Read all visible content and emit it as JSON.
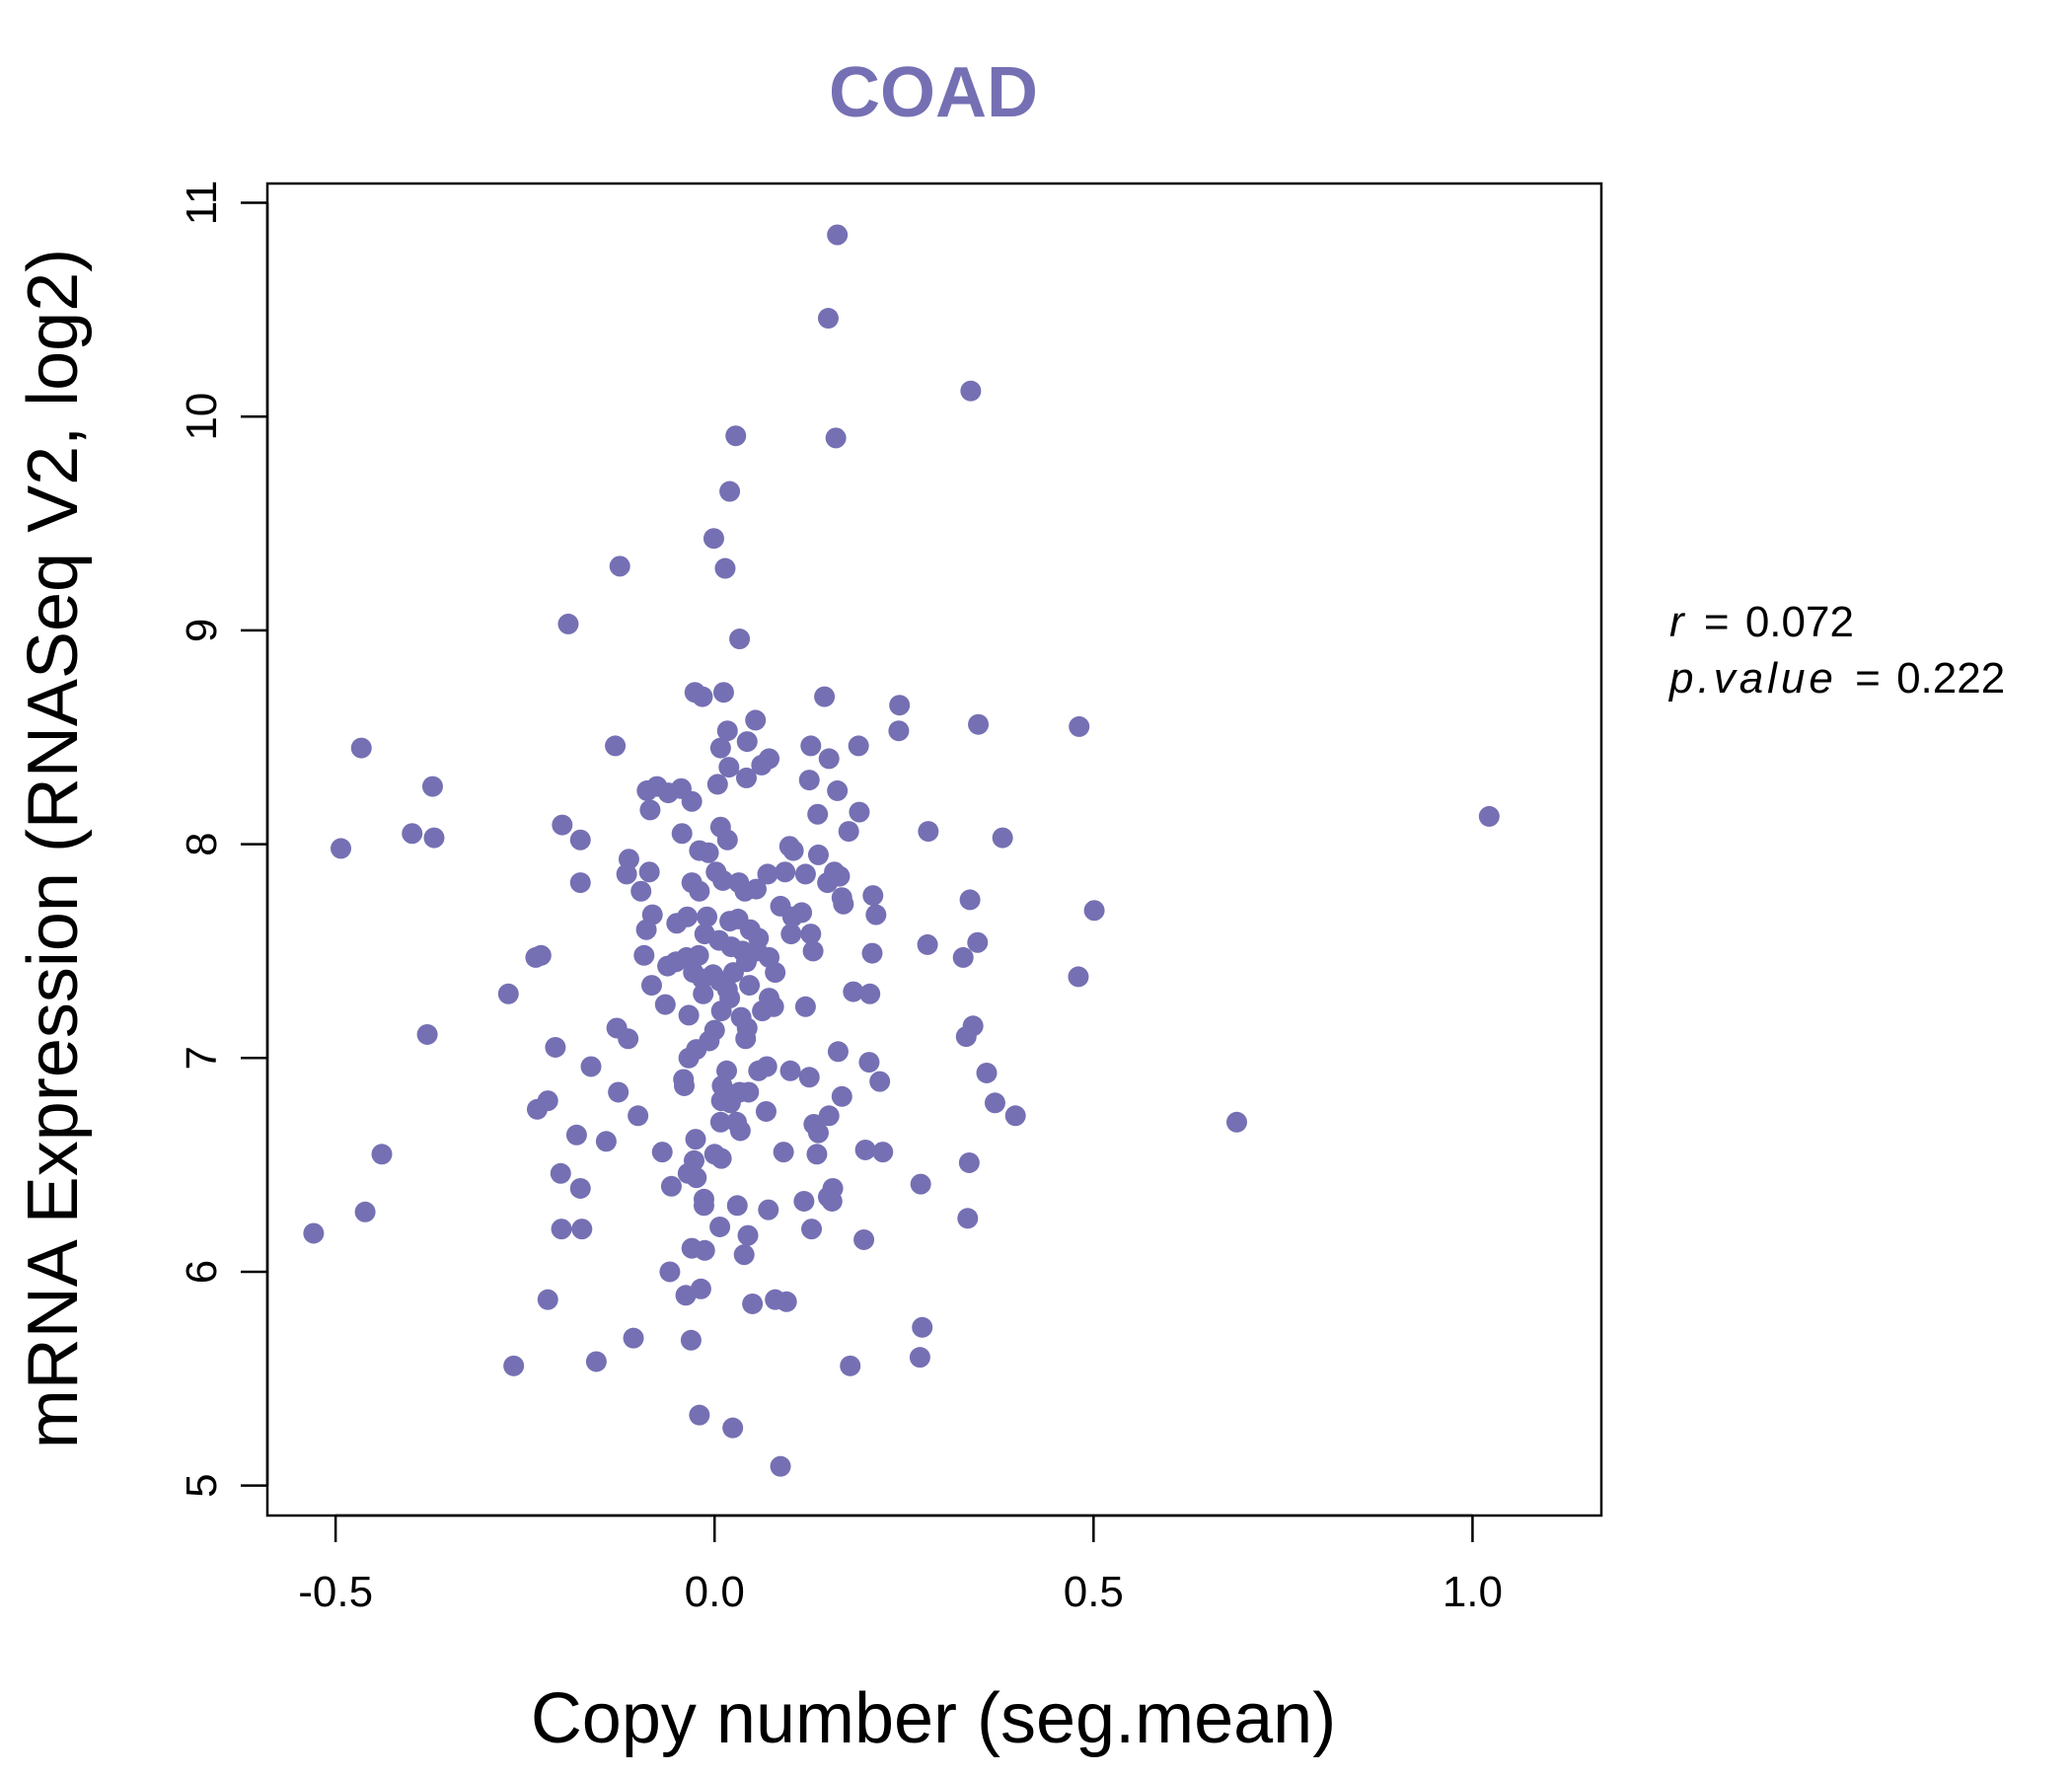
{
  "chart_data": {
    "type": "scatter",
    "title": "COAD",
    "xlabel": "Copy number (seg.mean)",
    "ylabel": "mRNA Expression (RNASeq V2, log2)",
    "xlim": [
      -0.59,
      1.17
    ],
    "ylim": [
      4.86,
      11.09
    ],
    "x_ticks": [
      "-0.5",
      "0.0",
      "0.5",
      "1.0"
    ],
    "x_tick_values": [
      -0.5,
      0.0,
      0.5,
      1.0
    ],
    "y_ticks": [
      "5",
      "6",
      "7",
      "8",
      "9",
      "10",
      "11"
    ],
    "y_tick_values": [
      5,
      6,
      7,
      8,
      9,
      10,
      11
    ],
    "grid": false,
    "point_color": "#7570B3",
    "stats": {
      "r_label": "r",
      "r_value": "0.072",
      "p_label": "p.value",
      "p_value": "0.222"
    },
    "series": [
      {
        "points": [
          [
            0.162,
            10.85
          ],
          [
            0.15,
            10.46
          ],
          [
            0.338,
            10.12
          ],
          [
            0.16,
            9.9
          ],
          [
            0.028,
            9.91
          ],
          [
            0.02,
            9.65
          ],
          [
            -0.001,
            9.43
          ],
          [
            0.014,
            9.29
          ],
          [
            -0.125,
            9.3
          ],
          [
            0.033,
            8.96
          ],
          [
            -0.193,
            9.03
          ],
          [
            -0.026,
            8.71
          ],
          [
            -0.016,
            8.69
          ],
          [
            0.012,
            8.71
          ],
          [
            0.145,
            8.69
          ],
          [
            0.244,
            8.65
          ],
          [
            0.348,
            8.56
          ],
          [
            0.481,
            8.55
          ],
          [
            0.243,
            8.53
          ],
          [
            0.054,
            8.58
          ],
          [
            0.017,
            8.53
          ],
          [
            0.008,
            8.45
          ],
          [
            0.043,
            8.48
          ],
          [
            -0.131,
            8.46
          ],
          [
            0.127,
            8.46
          ],
          [
            0.19,
            8.46
          ],
          [
            0.072,
            8.4
          ],
          [
            0.062,
            8.37
          ],
          [
            0.151,
            8.4
          ],
          [
            0.019,
            8.36
          ],
          [
            0.042,
            8.31
          ],
          [
            -0.466,
            8.45
          ],
          [
            -0.372,
            8.27
          ],
          [
            -0.076,
            8.27
          ],
          [
            -0.089,
            8.25
          ],
          [
            -0.061,
            8.24
          ],
          [
            -0.044,
            8.26
          ],
          [
            -0.03,
            8.2
          ],
          [
            0.125,
            8.3
          ],
          [
            0.162,
            8.25
          ],
          [
            0.004,
            8.28
          ],
          [
            -0.085,
            8.16
          ],
          [
            0.136,
            8.14
          ],
          [
            0.191,
            8.15
          ],
          [
            -0.201,
            8.09
          ],
          [
            0.008,
            8.08
          ],
          [
            0.177,
            8.06
          ],
          [
            0.282,
            8.06
          ],
          [
            -0.399,
            8.05
          ],
          [
            -0.37,
            8.03
          ],
          [
            -0.177,
            8.02
          ],
          [
            -0.043,
            8.05
          ],
          [
            0.017,
            8.02
          ],
          [
            0.38,
            8.03
          ],
          [
            -0.493,
            7.98
          ],
          [
            0.099,
            7.99
          ],
          [
            0.104,
            7.97
          ],
          [
            -0.02,
            7.97
          ],
          [
            -0.008,
            7.96
          ],
          [
            0.137,
            7.95
          ],
          [
            -0.113,
            7.93
          ],
          [
            -0.086,
            7.87
          ],
          [
            -0.116,
            7.86
          ],
          [
            0.002,
            7.87
          ],
          [
            0.07,
            7.86
          ],
          [
            0.093,
            7.87
          ],
          [
            0.12,
            7.86
          ],
          [
            0.158,
            7.87
          ],
          [
            0.165,
            7.85
          ],
          [
            -0.177,
            7.82
          ],
          [
            -0.03,
            7.82
          ],
          [
            0.011,
            7.83
          ],
          [
            0.032,
            7.82
          ],
          [
            0.149,
            7.82
          ],
          [
            -0.097,
            7.78
          ],
          [
            -0.02,
            7.78
          ],
          [
            0.04,
            7.78
          ],
          [
            0.055,
            7.79
          ],
          [
            0.168,
            7.75
          ],
          [
            0.209,
            7.76
          ],
          [
            0.337,
            7.74
          ],
          [
            0.17,
            7.72
          ],
          [
            0.501,
            7.69
          ],
          [
            -0.082,
            7.67
          ],
          [
            0.087,
            7.71
          ],
          [
            0.115,
            7.68
          ],
          [
            0.213,
            7.67
          ],
          [
            0.02,
            7.64
          ],
          [
            -0.05,
            7.63
          ],
          [
            -0.036,
            7.66
          ],
          [
            -0.01,
            7.66
          ],
          [
            0.031,
            7.65
          ],
          [
            0.047,
            7.6
          ],
          [
            0.058,
            7.56
          ],
          [
            0.103,
            7.66
          ],
          [
            0.101,
            7.58
          ],
          [
            -0.09,
            7.6
          ],
          [
            0.127,
            7.58
          ],
          [
            0.347,
            7.54
          ],
          [
            0.281,
            7.53
          ],
          [
            -0.013,
            7.58
          ],
          [
            0.006,
            7.55
          ],
          [
            0.022,
            7.52
          ],
          [
            0.037,
            7.5
          ],
          [
            -0.021,
            7.48
          ],
          [
            -0.093,
            7.48
          ],
          [
            0.13,
            7.5
          ],
          [
            0.056,
            7.5
          ],
          [
            0.208,
            7.49
          ],
          [
            -0.236,
            7.47
          ],
          [
            -0.229,
            7.48
          ],
          [
            0.328,
            7.47
          ],
          [
            -0.051,
            7.45
          ],
          [
            -0.037,
            7.47
          ],
          [
            0.072,
            7.47
          ],
          [
            0.042,
            7.45
          ],
          [
            -0.062,
            7.43
          ],
          [
            -0.028,
            7.4
          ],
          [
            -0.002,
            7.39
          ],
          [
            0.025,
            7.4
          ],
          [
            0.08,
            7.4
          ],
          [
            -0.016,
            7.37
          ],
          [
            0.007,
            7.36
          ],
          [
            0.48,
            7.38
          ],
          [
            -0.083,
            7.34
          ],
          [
            0.046,
            7.34
          ],
          [
            0.183,
            7.31
          ],
          [
            0.205,
            7.3
          ],
          [
            -0.272,
            7.3
          ],
          [
            -0.015,
            7.3
          ],
          [
            0.017,
            7.32
          ],
          [
            0.02,
            7.28
          ],
          [
            0.072,
            7.28
          ],
          [
            -0.065,
            7.25
          ],
          [
            0.078,
            7.24
          ],
          [
            0.12,
            7.24
          ],
          [
            0.009,
            7.22
          ],
          [
            0.063,
            7.22
          ],
          [
            -0.034,
            7.2
          ],
          [
            0.035,
            7.19
          ],
          [
            0.043,
            7.14
          ],
          [
            -0.129,
            7.14
          ],
          [
            -0.379,
            7.11
          ],
          [
            -0.114,
            7.09
          ],
          [
            0.0,
            7.13
          ],
          [
            0.041,
            7.09
          ],
          [
            0.332,
            7.1
          ],
          [
            0.341,
            7.15
          ],
          [
            -0.21,
            7.05
          ],
          [
            -0.007,
            7.08
          ],
          [
            -0.024,
            7.04
          ],
          [
            0.163,
            7.03
          ],
          [
            -0.034,
            7.0
          ],
          [
            0.204,
            6.98
          ],
          [
            0.069,
            6.96
          ],
          [
            0.058,
            6.94
          ],
          [
            0.1,
            6.94
          ],
          [
            0.016,
            6.94
          ],
          [
            -0.163,
            6.96
          ],
          [
            0.359,
            6.93
          ],
          [
            -0.041,
            6.9
          ],
          [
            0.125,
            6.91
          ],
          [
            0.218,
            6.89
          ],
          [
            -0.04,
            6.87
          ],
          [
            0.01,
            6.87
          ],
          [
            0.033,
            6.84
          ],
          [
            0.045,
            6.84
          ],
          [
            -0.127,
            6.84
          ],
          [
            0.168,
            6.82
          ],
          [
            -0.22,
            6.8
          ],
          [
            0.009,
            6.8
          ],
          [
            0.021,
            6.79
          ],
          [
            0.37,
            6.79
          ],
          [
            -0.234,
            6.76
          ],
          [
            0.068,
            6.75
          ],
          [
            -0.101,
            6.73
          ],
          [
            0.151,
            6.73
          ],
          [
            0.397,
            6.73
          ],
          [
            0.689,
            6.7
          ],
          [
            0.008,
            6.7
          ],
          [
            0.029,
            6.7
          ],
          [
            0.131,
            6.69
          ],
          [
            0.034,
            6.66
          ],
          [
            0.137,
            6.65
          ],
          [
            -0.182,
            6.64
          ],
          [
            -0.143,
            6.61
          ],
          [
            -0.025,
            6.62
          ],
          [
            0.199,
            6.57
          ],
          [
            0.222,
            6.56
          ],
          [
            0.091,
            6.56
          ],
          [
            0.135,
            6.55
          ],
          [
            -0.069,
            6.56
          ],
          [
            -0.439,
            6.55
          ],
          [
            0.0,
            6.55
          ],
          [
            0.009,
            6.53
          ],
          [
            -0.027,
            6.52
          ],
          [
            0.336,
            6.51
          ],
          [
            -0.203,
            6.46
          ],
          [
            -0.035,
            6.46
          ],
          [
            -0.024,
            6.44
          ],
          [
            0.272,
            6.41
          ],
          [
            -0.057,
            6.4
          ],
          [
            -0.177,
            6.39
          ],
          [
            0.156,
            6.39
          ],
          [
            0.15,
            6.35
          ],
          [
            0.155,
            6.33
          ],
          [
            0.118,
            6.33
          ],
          [
            -0.014,
            6.34
          ],
          [
            -0.014,
            6.31
          ],
          [
            0.03,
            6.31
          ],
          [
            0.071,
            6.29
          ],
          [
            -0.461,
            6.28
          ],
          [
            0.334,
            6.25
          ],
          [
            0.007,
            6.21
          ],
          [
            -0.202,
            6.2
          ],
          [
            -0.175,
            6.2
          ],
          [
            0.128,
            6.2
          ],
          [
            -0.529,
            6.18
          ],
          [
            0.044,
            6.17
          ],
          [
            0.197,
            6.15
          ],
          [
            -0.03,
            6.11
          ],
          [
            -0.013,
            6.1
          ],
          [
            0.039,
            6.08
          ],
          [
            -0.059,
            6.0
          ],
          [
            -0.018,
            5.92
          ],
          [
            -0.038,
            5.89
          ],
          [
            -0.22,
            5.87
          ],
          [
            0.08,
            5.87
          ],
          [
            0.095,
            5.86
          ],
          [
            0.05,
            5.85
          ],
          [
            0.274,
            5.74
          ],
          [
            -0.107,
            5.69
          ],
          [
            -0.031,
            5.68
          ],
          [
            0.271,
            5.6
          ],
          [
            -0.156,
            5.58
          ],
          [
            -0.265,
            5.56
          ],
          [
            0.179,
            5.56
          ],
          [
            -0.02,
            5.33
          ],
          [
            0.024,
            5.27
          ],
          [
            0.087,
            5.09
          ],
          [
            1.022,
            8.13
          ]
        ]
      }
    ]
  }
}
